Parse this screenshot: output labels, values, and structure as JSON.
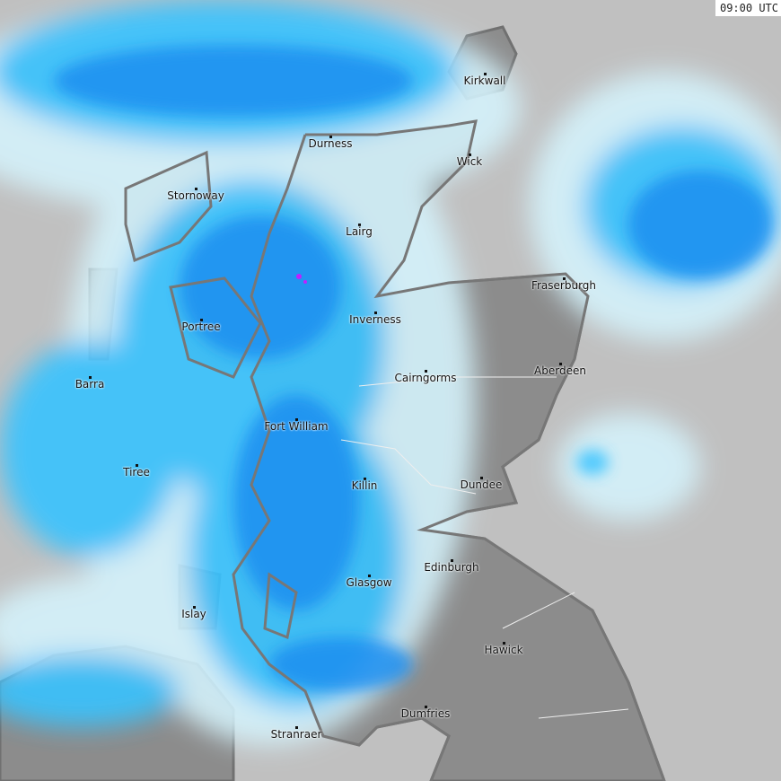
{
  "map": {
    "type": "weather radar",
    "timestamp": "09:00 UTC",
    "colors": {
      "sea": "#c0c0c0",
      "land": "#8c8c8c",
      "coast": "#707070",
      "light_precip": "#d4f2fb",
      "moderate_precip": "#39c3ff",
      "heavy_precip": "#1e8ff0",
      "very_heavy_precip": "#c020ff"
    },
    "cities": [
      "Kirkwall",
      "Durness",
      "Wick",
      "Stornoway",
      "Lairg",
      "Fraserburgh",
      "Inverness",
      "Portree",
      "Aberdeen",
      "Cairngorms",
      "Barra",
      "Fort William",
      "Tiree",
      "Killin",
      "Dundee",
      "Edinburgh",
      "Glasgow",
      "Islay",
      "Hawick",
      "Dumfries",
      "Stranraer"
    ]
  }
}
